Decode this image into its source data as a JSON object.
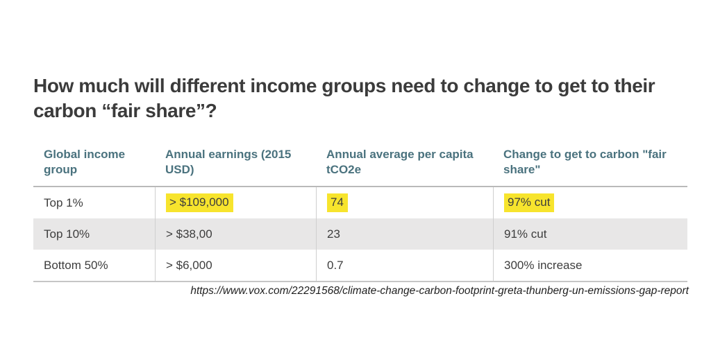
{
  "page": {
    "title": "How much will different income groups need to change to get to their carbon “fair share”?",
    "source_url": "https://www.vox.com/22291568/climate-change-carbon-footprint-greta-thunberg-un-emissions-gap-report"
  },
  "colors": {
    "title_text": "#3b3b3b",
    "header_text": "#4a727e",
    "body_text": "#3d3d3d",
    "highlight_yellow": "#f7e42d",
    "alt_row_background": "#e8e7e7",
    "border_gray": "#c6c6c6"
  },
  "chart_data": {
    "type": "table",
    "title": "How much will different income groups need to change to get to their carbon “fair share”?",
    "columns": [
      "Global income group",
      "Annual earnings (2015 USD)",
      "Annual average per capita tCO2e",
      "Change to get to carbon \"fair share\""
    ],
    "rows": [
      [
        "Top 1%",
        "> $109,000",
        "74",
        "97% cut"
      ],
      [
        "Top 10%",
        "> $38,00",
        "23",
        "91% cut"
      ],
      [
        "Bottom 50%",
        "> $6,000",
        "0.7",
        "300% increase"
      ]
    ],
    "highlighted_cells": [
      [
        0,
        1
      ],
      [
        0,
        2
      ],
      [
        0,
        3
      ]
    ],
    "source": "https://www.vox.com/22291568/climate-change-carbon-footprint-greta-thunberg-un-emissions-gap-report",
    "layout": {
      "grid": "off",
      "alternating_row_shading": true,
      "highlight_style": "yellow marker on top-1% data cells"
    }
  }
}
